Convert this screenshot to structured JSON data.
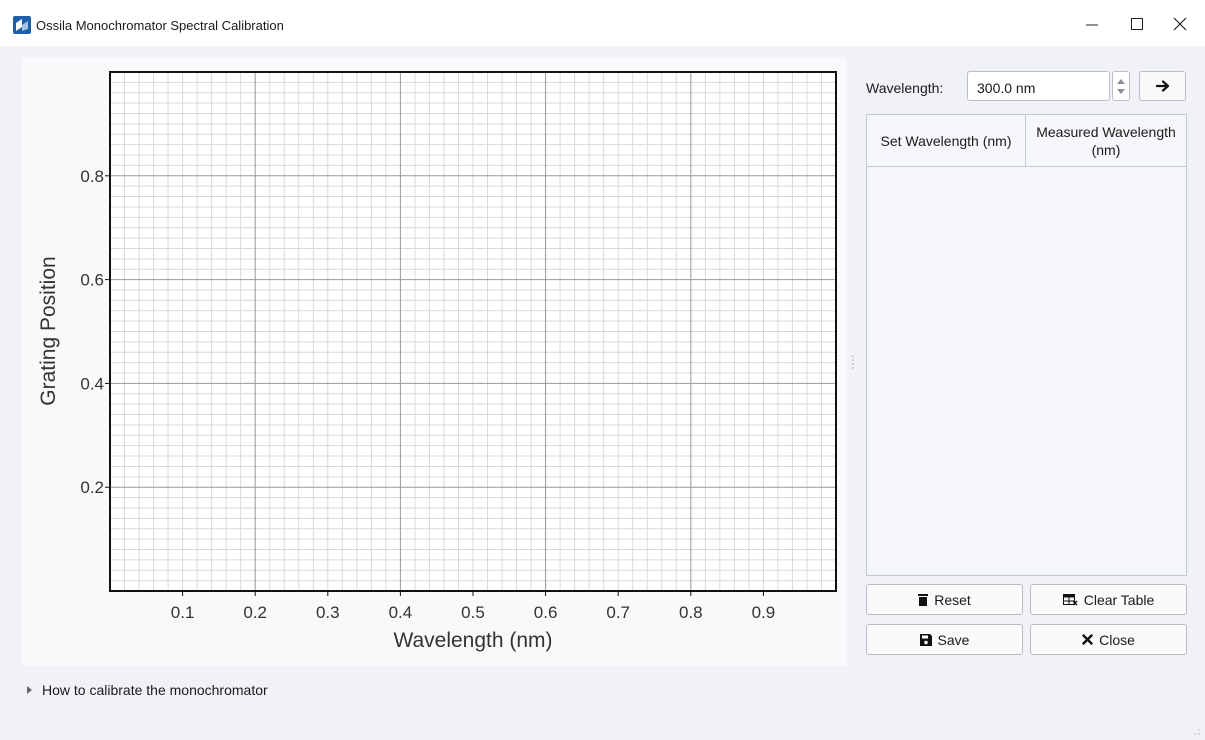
{
  "window": {
    "title": "Ossila Monochromator Spectral Calibration",
    "controls": [
      "minimize",
      "maximize",
      "close"
    ]
  },
  "chart_data": {
    "type": "scatter",
    "title": "",
    "xlabel": "Wavelength (nm)",
    "ylabel": "Grating Position",
    "xlim": [
      0,
      1
    ],
    "ylim": [
      0,
      1
    ],
    "x_ticks": [
      "0.1",
      "0.2",
      "0.3",
      "0.4",
      "0.5",
      "0.6",
      "0.7",
      "0.8",
      "0.9"
    ],
    "y_ticks": [
      "0.2",
      "0.4",
      "0.6",
      "0.8"
    ],
    "grid": true,
    "minor_grid": true,
    "series": []
  },
  "controls": {
    "wavelength_label": "Wavelength:",
    "wavelength_value": "300.0 nm",
    "go_icon": "arrow-right-icon"
  },
  "table": {
    "columns": [
      "Set Wavelength (nm)",
      "Measured Wavelength (nm)"
    ],
    "rows": []
  },
  "buttons": {
    "reset": {
      "label": "Reset",
      "icon": "trash-icon"
    },
    "clear": {
      "label": "Clear Table",
      "icon": "clear-table-icon"
    },
    "save": {
      "label": "Save",
      "icon": "save-icon"
    },
    "close": {
      "label": "Close",
      "icon": "close-x-icon"
    }
  },
  "help": {
    "label": "How to calibrate the monochromator"
  },
  "colors": {
    "title_bg": "#ffffff",
    "client_bg": "#f0f2f7",
    "plot_bg": "#ffffff",
    "major_grid": "#999999",
    "minor_grid": "#d9d9d9"
  }
}
